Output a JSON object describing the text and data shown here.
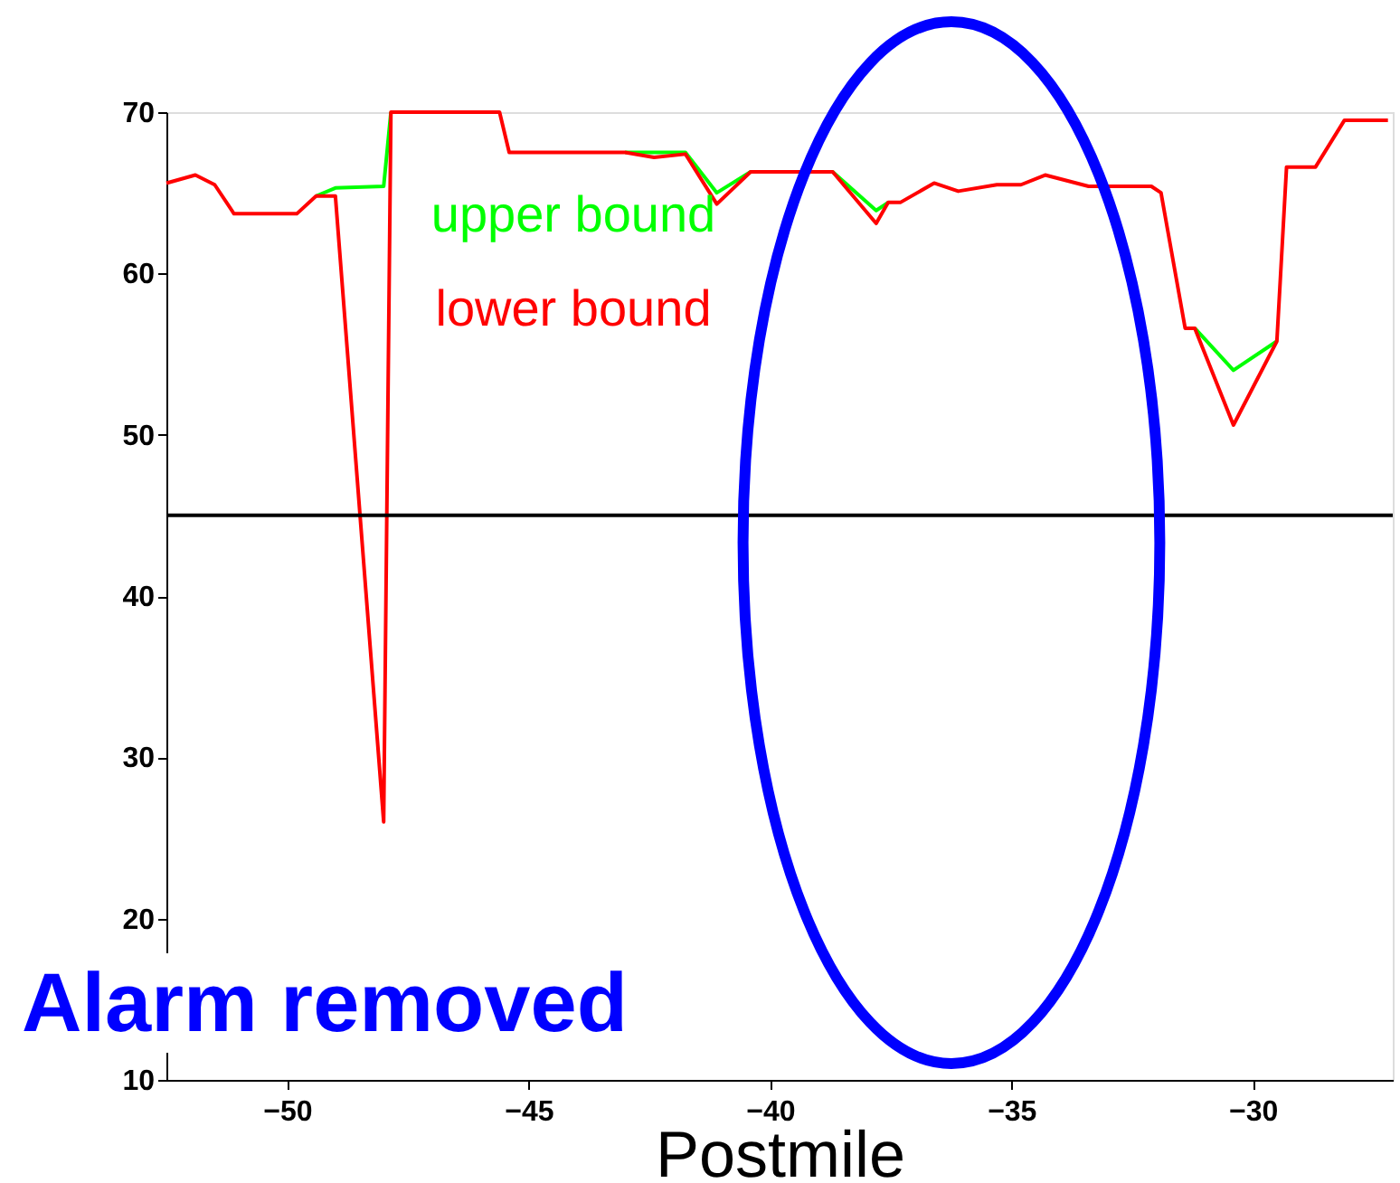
{
  "chart_data": {
    "type": "line",
    "xlabel": "Postmile",
    "x": [
      -52.5,
      -51.9,
      -51.5,
      -51.1,
      -49.8,
      -49.4,
      -49.0,
      -48.0,
      -47.85,
      -45.6,
      -45.4,
      -43.0,
      -42.4,
      -41.75,
      -41.1,
      -40.4,
      -38.7,
      -37.8,
      -37.55,
      -37.3,
      -36.6,
      -36.1,
      -35.3,
      -34.8,
      -34.3,
      -33.4,
      -32.1,
      -31.9,
      -31.4,
      -31.2,
      -30.4,
      -29.5,
      -29.3,
      -28.7,
      -28.1,
      -27.2
    ],
    "series": [
      {
        "name": "upper bound",
        "color": "#00ff00",
        "values": [
          null,
          null,
          null,
          null,
          null,
          64.8,
          65.3,
          65.4,
          70,
          null,
          null,
          67.5,
          67.5,
          67.5,
          65.0,
          66.3,
          66.3,
          63.9,
          64.4,
          null,
          null,
          null,
          null,
          null,
          null,
          null,
          null,
          null,
          null,
          56.6,
          54.0,
          55.8,
          null,
          null,
          null,
          null
        ]
      },
      {
        "name": "lower bound",
        "color": "#ff0000",
        "values": [
          65.6,
          66.1,
          65.5,
          63.7,
          63.7,
          64.8,
          64.8,
          26.0,
          70,
          70,
          67.5,
          67.5,
          67.2,
          67.4,
          64.3,
          66.3,
          66.3,
          63.1,
          64.4,
          64.4,
          65.6,
          65.1,
          65.5,
          65.5,
          66.1,
          65.4,
          65.4,
          65.0,
          56.6,
          56.6,
          50.6,
          55.8,
          66.6,
          66.6,
          69.5,
          69.5
        ]
      }
    ],
    "xlim": [
      -52.5,
      -27.1
    ],
    "ylim": [
      10,
      70
    ],
    "xticks": [
      -50,
      -45,
      -40,
      -35,
      -30
    ],
    "yticks": [
      10,
      20,
      30,
      40,
      50,
      60,
      70
    ],
    "ref_lines": [
      {
        "axis": "y",
        "value": 45,
        "color": "#000000"
      }
    ],
    "annotations": [
      "Alarm removed"
    ],
    "grid": false,
    "legend": false,
    "line_style": "solid",
    "marker": "none"
  }
}
